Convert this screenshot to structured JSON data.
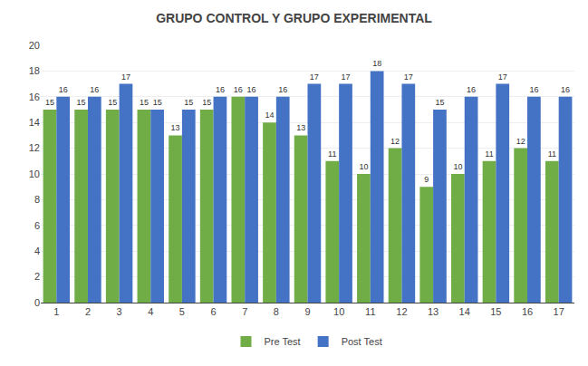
{
  "chart_data": {
    "type": "bar",
    "title": "GRUPO CONTROL Y GRUPO EXPERIMENTAL",
    "categories": [
      1,
      2,
      3,
      4,
      5,
      6,
      7,
      8,
      9,
      10,
      11,
      12,
      13,
      14,
      15,
      16,
      17
    ],
    "series": [
      {
        "name": "Pre Test",
        "color": "#70AD47",
        "values": [
          15,
          15,
          15,
          15,
          13,
          15,
          16,
          14,
          13,
          11,
          10,
          12,
          9,
          10,
          11,
          12,
          11
        ]
      },
      {
        "name": "Post Test",
        "color": "#4472C4",
        "values": [
          16,
          16,
          17,
          15,
          15,
          16,
          16,
          16,
          17,
          17,
          18,
          17,
          15,
          16,
          17,
          16,
          16
        ]
      }
    ],
    "ylim": [
      0,
      20
    ],
    "yticks": [
      0,
      2,
      4,
      6,
      8,
      10,
      12,
      14,
      16,
      18,
      20
    ],
    "grid": true,
    "legend": "bottom",
    "data_labels": true
  }
}
